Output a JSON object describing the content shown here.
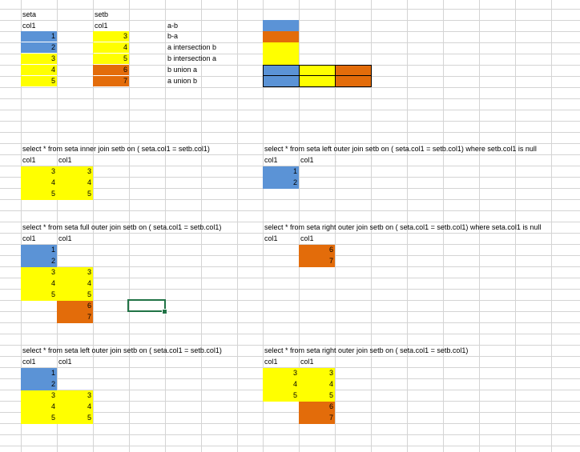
{
  "colors": {
    "blue": "#5b93d6",
    "yellow": "#ffff00",
    "orange": "#e36c0a",
    "gridline": "#d4d4d4",
    "selection": "#217346"
  },
  "seta": {
    "title": "seta",
    "header": "col1",
    "values": [
      "1",
      "2",
      "3",
      "4",
      "5"
    ]
  },
  "setb": {
    "title": "setb",
    "header": "col1",
    "values": [
      "3",
      "4",
      "5",
      "6",
      "7"
    ]
  },
  "legend": {
    "items": [
      "a-b",
      "b-a",
      "a intersection b",
      "b union a",
      "a union b"
    ]
  },
  "queries": [
    {
      "sql": "select * from seta inner join setb on ( seta.col1 = setb.col1)",
      "headers": [
        "col1",
        "col1"
      ],
      "rows": [
        [
          "3",
          "3"
        ],
        [
          "4",
          "4"
        ],
        [
          "5",
          "5"
        ]
      ]
    },
    {
      "sql": "select * from seta left outer join setb on ( seta.col1 = setb.col1) where setb.col1 is null",
      "headers": [
        "col1",
        "col1"
      ],
      "rows": [
        [
          "1",
          ""
        ],
        [
          "2",
          ""
        ]
      ]
    },
    {
      "sql": "select * from seta full outer join setb on ( seta.col1 = setb.col1)",
      "headers": [
        "col1",
        "col1"
      ],
      "rows": [
        [
          "1",
          ""
        ],
        [
          "2",
          ""
        ],
        [
          "3",
          "3"
        ],
        [
          "4",
          "4"
        ],
        [
          "5",
          "5"
        ],
        [
          "",
          "6"
        ],
        [
          "",
          "7"
        ]
      ]
    },
    {
      "sql": "select * from seta right outer join setb on ( seta.col1 = setb.col1) where seta.col1 is null",
      "headers": [
        "col1",
        "col1"
      ],
      "rows": [
        [
          "",
          "6"
        ],
        [
          "",
          "7"
        ]
      ]
    },
    {
      "sql": "select * from seta left outer join setb on ( seta.col1 = setb.col1)",
      "headers": [
        "col1",
        "col1"
      ],
      "rows": [
        [
          "1",
          ""
        ],
        [
          "2",
          ""
        ],
        [
          "3",
          "3"
        ],
        [
          "4",
          "4"
        ],
        [
          "5",
          "5"
        ]
      ]
    },
    {
      "sql": "select * from seta right outer join setb on ( seta.col1 = setb.col1)",
      "headers": [
        "col1",
        "col1"
      ],
      "rows": [
        [
          "3",
          "3"
        ],
        [
          "4",
          "4"
        ],
        [
          "5",
          "5"
        ],
        [
          "",
          "6"
        ],
        [
          "",
          "7"
        ]
      ]
    }
  ]
}
